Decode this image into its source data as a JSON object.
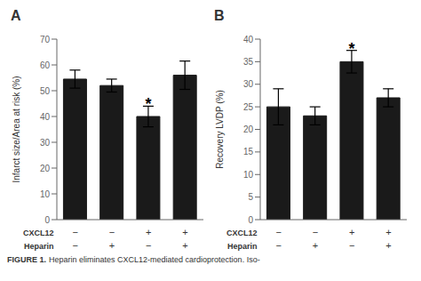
{
  "chart_data": [
    {
      "type": "bar",
      "title": "A",
      "ylabel": "Infarct size/Area at risk (%)",
      "ylim": [
        0,
        70
      ],
      "yticks": [
        0,
        10,
        20,
        30,
        40,
        50,
        60,
        70
      ],
      "values": [
        54.5,
        52.0,
        40.0,
        56.0
      ],
      "errors": [
        3.5,
        2.5,
        4.0,
        5.5
      ],
      "color": "#1a1a1a",
      "category_rows": [
        {
          "label": "CXCL12",
          "values": [
            "−",
            "−",
            "+",
            "+"
          ]
        },
        {
          "label": "Heparin",
          "values": [
            "−",
            "+",
            "−",
            "+"
          ]
        }
      ],
      "annotations": [
        {
          "text": "*",
          "index": 2
        }
      ]
    },
    {
      "type": "bar",
      "title": "B",
      "ylabel": "Recovery LVDP (%)",
      "ylim": [
        0,
        40
      ],
      "yticks": [
        0,
        5,
        10,
        15,
        20,
        25,
        30,
        35,
        40
      ],
      "values": [
        25.0,
        23.0,
        35.0,
        27.0
      ],
      "errors": [
        4.0,
        2.0,
        2.5,
        2.0
      ],
      "color": "#1a1a1a",
      "category_rows": [
        {
          "label": "CXCL12",
          "values": [
            "−",
            "−",
            "+",
            "+"
          ]
        },
        {
          "label": "Heparin",
          "values": [
            "−",
            "+",
            "−",
            "+"
          ]
        }
      ],
      "annotations": [
        {
          "text": "*",
          "index": 2
        }
      ]
    }
  ],
  "caption_bold": "FIGURE 1.",
  "caption": "Heparin eliminates CXCL12-mediated cardioprotection. Iso-"
}
